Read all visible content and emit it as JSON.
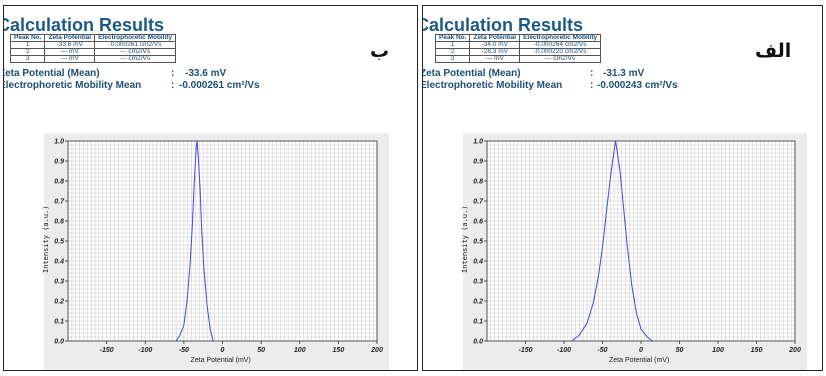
{
  "panels": [
    {
      "letter": "ب",
      "title": "Calculation Results",
      "table": {
        "headers": [
          "Peak No.",
          "Zeta Potential",
          "Electrophoretic Mobility"
        ],
        "rows": [
          [
            "1",
            "-33.6 mV",
            "-0.000261 cm2/Vs"
          ],
          [
            "2",
            "--- mV",
            "--- cm2/Vs"
          ],
          [
            "3",
            "--- mV",
            "--- cm2/Vs"
          ]
        ]
      },
      "summary": {
        "zeta_label": "Zeta Potential (Mean)",
        "zeta_value": "-33.6 mV",
        "mobility_label": "Electrophoretic Mobility Mean",
        "mobility_value": "-0.000261 cm²/Vs"
      }
    },
    {
      "letter": "الف",
      "title": "Calculation Results",
      "table": {
        "headers": [
          "Peak No.",
          "Zeta Potential",
          "Electrophoretic Mobility"
        ],
        "rows": [
          [
            "1",
            "-34.0 mV",
            "-0.000264 cm2/Vs"
          ],
          [
            "2",
            "-28.3 mV",
            "-0.000220 cm2/Vs"
          ],
          [
            "3",
            "--- mV",
            "--- cm2/Vs"
          ]
        ]
      },
      "summary": {
        "zeta_label": "Zeta Potential (Mean)",
        "zeta_value": "-31.3 mV",
        "mobility_label": "Electrophoretic Mobility Mean",
        "mobility_value": "-0.000243 cm²/Vs"
      }
    }
  ],
  "chart_data": [
    {
      "type": "line",
      "xlabel": "Zeta Potential (mV)",
      "ylabel": "Intensity (a.u.)",
      "xlim": [
        -200,
        200
      ],
      "ylim": [
        0,
        1.0
      ],
      "xticks": [
        -150,
        -100,
        -50,
        0,
        50,
        100,
        150,
        200
      ],
      "yticks": [
        0.0,
        0.1,
        0.2,
        0.3,
        0.4,
        0.5,
        0.6,
        0.7,
        0.8,
        0.9,
        1.0
      ],
      "grid": true,
      "line_color": "#3a4ed8",
      "series": [
        {
          "x": [
            -60,
            -55,
            -50,
            -46,
            -42,
            -39,
            -37,
            -35,
            -34,
            -33,
            -31,
            -29,
            -27,
            -24,
            -20,
            -16,
            -12
          ],
          "y": [
            0.0,
            0.03,
            0.08,
            0.2,
            0.38,
            0.58,
            0.76,
            0.9,
            0.97,
            1.0,
            0.9,
            0.76,
            0.56,
            0.36,
            0.18,
            0.06,
            0.0
          ]
        }
      ]
    },
    {
      "type": "line",
      "xlabel": "Zeta Potential (mV)",
      "ylabel": "Intensity (a.u.)",
      "xlim": [
        -200,
        200
      ],
      "ylim": [
        0,
        1.0
      ],
      "xticks": [
        -150,
        -100,
        -50,
        0,
        50,
        100,
        150,
        200
      ],
      "yticks": [
        0.0,
        0.1,
        0.2,
        0.3,
        0.4,
        0.5,
        0.6,
        0.7,
        0.8,
        0.9,
        1.0
      ],
      "grid": true,
      "line_color": "#3a4ed8",
      "series": [
        {
          "x": [
            -90,
            -80,
            -70,
            -62,
            -55,
            -50,
            -45,
            -40,
            -35,
            -33,
            -31,
            -27,
            -23,
            -18,
            -12,
            -6,
            0,
            8,
            15
          ],
          "y": [
            0.0,
            0.03,
            0.09,
            0.19,
            0.33,
            0.47,
            0.64,
            0.81,
            0.95,
            1.0,
            0.95,
            0.84,
            0.68,
            0.48,
            0.28,
            0.14,
            0.06,
            0.02,
            0.0
          ]
        }
      ]
    }
  ]
}
